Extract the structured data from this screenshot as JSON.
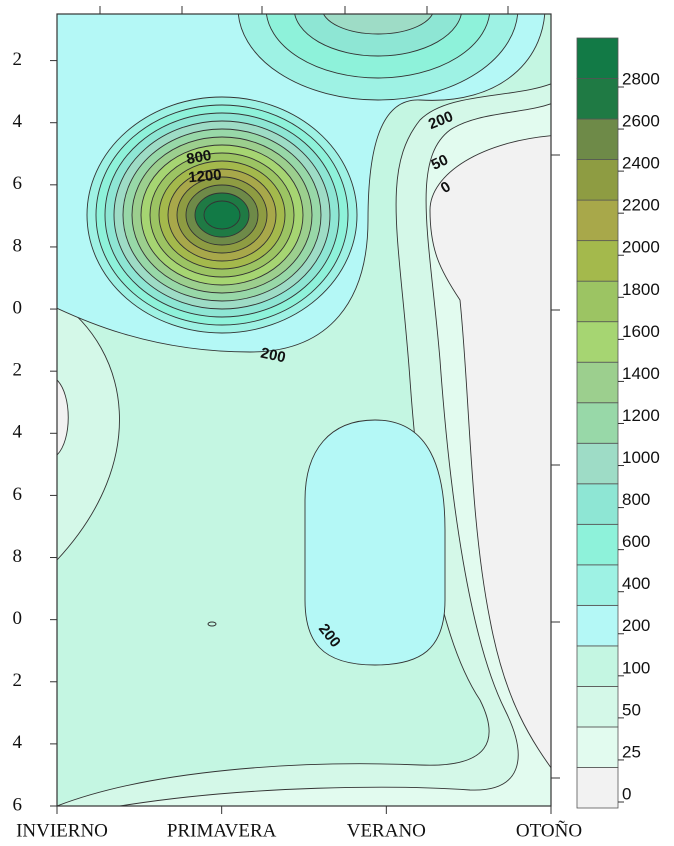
{
  "chart_data": {
    "type": "contour",
    "categories": [
      "INVIERNO",
      "PRIMAVERA",
      "VERANO",
      "OTOÑO"
    ],
    "ylim": [
      0.5,
      26
    ],
    "yticks": [
      2,
      4,
      6,
      8,
      {
        "value": 10,
        "label": "0"
      },
      {
        "value": 12,
        "label": "2"
      },
      {
        "value": 14,
        "label": "4"
      },
      {
        "value": 16,
        "label": "6"
      },
      {
        "value": 18,
        "label": "8"
      },
      {
        "value": 20,
        "label": "0"
      },
      {
        "value": 22,
        "label": "2"
      },
      {
        "value": 24,
        "label": "4"
      },
      {
        "value": 26,
        "label": "6"
      }
    ],
    "levels": [
      0,
      25,
      50,
      100,
      200,
      400,
      600,
      800,
      1000,
      1200,
      1400,
      1600,
      1800,
      2000,
      2200,
      2400,
      2600,
      2800
    ],
    "colors": [
      "#f2f2f2",
      "#e2fbef",
      "#d4f8e8",
      "#c4f6e2",
      "#b4f8f6",
      "#9ef2e4",
      "#8ef2da",
      "#8ee6d4",
      "#9edcc6",
      "#98d8a8",
      "#9ccf8e",
      "#a6d572",
      "#9cc463",
      "#a4b94c",
      "#a8a84a",
      "#8e9c42",
      "#6e8a48",
      "#1f7a44",
      "#127a46"
    ],
    "contour_labels": [
      "200",
      "800",
      "1200",
      "200",
      "50",
      "0",
      "200"
    ]
  }
}
